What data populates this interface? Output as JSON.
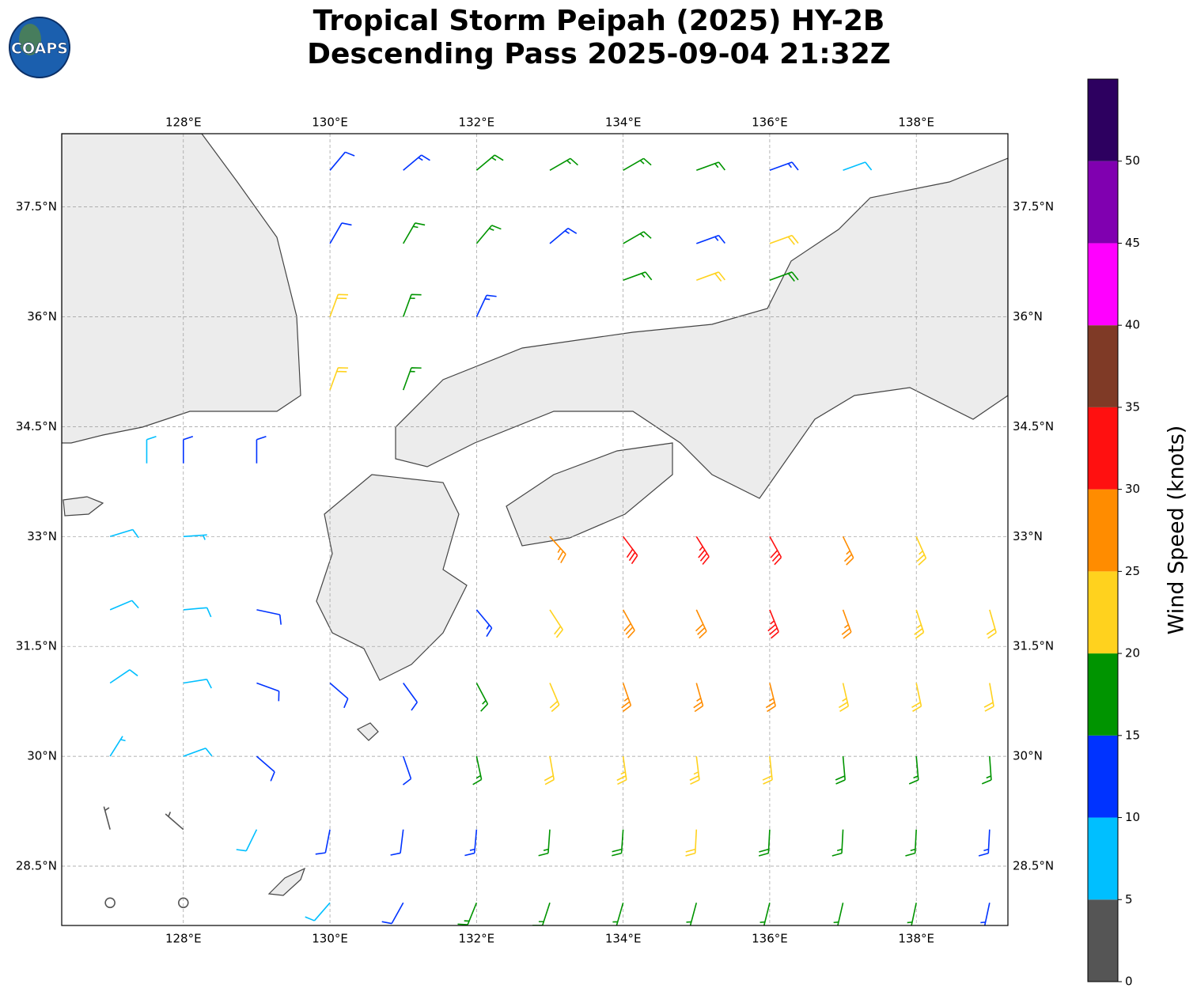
{
  "header": {
    "title": "Tropical Storm Peipah (2025) HY-2B",
    "subtitle": "Descending Pass 2025-09-04 21:32Z",
    "logo": "COAPS"
  },
  "map": {
    "xlim": [
      126.34,
      139.25
    ],
    "ylim": [
      27.69,
      38.5
    ],
    "grid": true,
    "xticks": [
      {
        "value": 128,
        "label": "128°E"
      },
      {
        "value": 130,
        "label": "130°E"
      },
      {
        "value": 132,
        "label": "132°E"
      },
      {
        "value": 134,
        "label": "134°E"
      },
      {
        "value": 136,
        "label": "136°E"
      },
      {
        "value": 138,
        "label": "138°E"
      }
    ],
    "yticks": [
      {
        "value": 28.5,
        "label": "28.5°N"
      },
      {
        "value": 30,
        "label": "30°N"
      },
      {
        "value": 31.5,
        "label": "31.5°N"
      },
      {
        "value": 33,
        "label": "33°N"
      },
      {
        "value": 34.5,
        "label": "34.5°N"
      },
      {
        "value": 36,
        "label": "36°N"
      },
      {
        "value": 37.5,
        "label": "37.5°N"
      }
    ],
    "barbs": [
      [
        133,
        33,
        27,
        138
      ],
      [
        134,
        33,
        32,
        143
      ],
      [
        135,
        33,
        33,
        148
      ],
      [
        136,
        33,
        30,
        151
      ],
      [
        137,
        33,
        27,
        154
      ],
      [
        138,
        33,
        24,
        156
      ],
      [
        132,
        32,
        14,
        140
      ],
      [
        133,
        32,
        22,
        147
      ],
      [
        134,
        32,
        28,
        151
      ],
      [
        135,
        32,
        29,
        155
      ],
      [
        136,
        32,
        33,
        158
      ],
      [
        137,
        32,
        27,
        160
      ],
      [
        138,
        32,
        23,
        162
      ],
      [
        139,
        32,
        22,
        164
      ],
      [
        131,
        31,
        12,
        144
      ],
      [
        132,
        31,
        17,
        152
      ],
      [
        133,
        31,
        21,
        157
      ],
      [
        134,
        31,
        26,
        161
      ],
      [
        135,
        31,
        27,
        164
      ],
      [
        136,
        31,
        27,
        166
      ],
      [
        137,
        31,
        24,
        167
      ],
      [
        138,
        31,
        22,
        168
      ],
      [
        139,
        31,
        21,
        170
      ],
      [
        131,
        30,
        12,
        161
      ],
      [
        132,
        30,
        16,
        168
      ],
      [
        133,
        30,
        22,
        170
      ],
      [
        134,
        30,
        23,
        172
      ],
      [
        135,
        30,
        23,
        173
      ],
      [
        136,
        30,
        22,
        174
      ],
      [
        137,
        30,
        19,
        175
      ],
      [
        138,
        30,
        17,
        175
      ],
      [
        139,
        30,
        16,
        176
      ],
      [
        130,
        29,
        12,
        191
      ],
      [
        131,
        29,
        12,
        187
      ],
      [
        132,
        29,
        14,
        185
      ],
      [
        133,
        29,
        16,
        184
      ],
      [
        134,
        29,
        19,
        184
      ],
      [
        135,
        29,
        21,
        183
      ],
      [
        136,
        29,
        19,
        183
      ],
      [
        137,
        29,
        17,
        183
      ],
      [
        138,
        29,
        17,
        183
      ],
      [
        139,
        29,
        14,
        183
      ],
      [
        130,
        28,
        9,
        221
      ],
      [
        131,
        28,
        12,
        209
      ],
      [
        132,
        28,
        16,
        202
      ],
      [
        133,
        28,
        17,
        198
      ],
      [
        134,
        28,
        17,
        196
      ],
      [
        135,
        28,
        17,
        195
      ],
      [
        136,
        28,
        17,
        194
      ],
      [
        137,
        28,
        17,
        193
      ],
      [
        138,
        28,
        16,
        192
      ],
      [
        139,
        28,
        13,
        192
      ],
      [
        127,
        28,
        2,
        311
      ],
      [
        128,
        28,
        1,
        281
      ],
      [
        127,
        29,
        4,
        345
      ],
      [
        128,
        29,
        3,
        311
      ],
      [
        129,
        29,
        9,
        206
      ],
      [
        127,
        30,
        7,
        32
      ],
      [
        128,
        30,
        8,
        70
      ],
      [
        129,
        30,
        10,
        131
      ],
      [
        127,
        31,
        8,
        56
      ],
      [
        128,
        31,
        9,
        81
      ],
      [
        129,
        31,
        12,
        110
      ],
      [
        130,
        31,
        12,
        131
      ],
      [
        127,
        32,
        9,
        67
      ],
      [
        128,
        32,
        9,
        85
      ],
      [
        129,
        32,
        12,
        102
      ],
      [
        127,
        33,
        9,
        73
      ],
      [
        128,
        33,
        7,
        86
      ],
      [
        127.5,
        34,
        8,
        0
      ],
      [
        128,
        34,
        12,
        0
      ],
      [
        129,
        34,
        12,
        0
      ],
      [
        130,
        35,
        22,
        20
      ],
      [
        131,
        35,
        17,
        20
      ],
      [
        130,
        36,
        22,
        20
      ],
      [
        131,
        36,
        17,
        20
      ],
      [
        132,
        36,
        13,
        25
      ],
      [
        134,
        36.5,
        17,
        70
      ],
      [
        135,
        36.5,
        21,
        70
      ],
      [
        136,
        36.5,
        19,
        70
      ],
      [
        130,
        37,
        12,
        30
      ],
      [
        131,
        37,
        16,
        30
      ],
      [
        132,
        37,
        17,
        40
      ],
      [
        133,
        37,
        14,
        50
      ],
      [
        134,
        37,
        16,
        60
      ],
      [
        135,
        37,
        13,
        70
      ],
      [
        136,
        37,
        20,
        70
      ],
      [
        130,
        38,
        10,
        40
      ],
      [
        131,
        38,
        13,
        50
      ],
      [
        132,
        38,
        15,
        50
      ],
      [
        133,
        38,
        17,
        60
      ],
      [
        134,
        38,
        17,
        60
      ],
      [
        135,
        38,
        16,
        70
      ],
      [
        136,
        38,
        13,
        70
      ],
      [
        137,
        38,
        9,
        70
      ]
    ]
  },
  "colorbar": {
    "label": "Wind Speed (knots)",
    "lim": [
      0,
      55
    ],
    "bounds": [
      0,
      5,
      10,
      15,
      20,
      25,
      30,
      35,
      40,
      45,
      50,
      55
    ],
    "colors": [
      "#555555",
      "#00bfff",
      "#0033ff",
      "#009400",
      "#ffd21e",
      "#ff8c00",
      "#ff1010",
      "#7f3a26",
      "#ff00ff",
      "#8000b0",
      "#2d0060"
    ],
    "ticks": [
      0,
      5,
      10,
      15,
      20,
      25,
      30,
      35,
      40,
      45,
      50
    ]
  }
}
